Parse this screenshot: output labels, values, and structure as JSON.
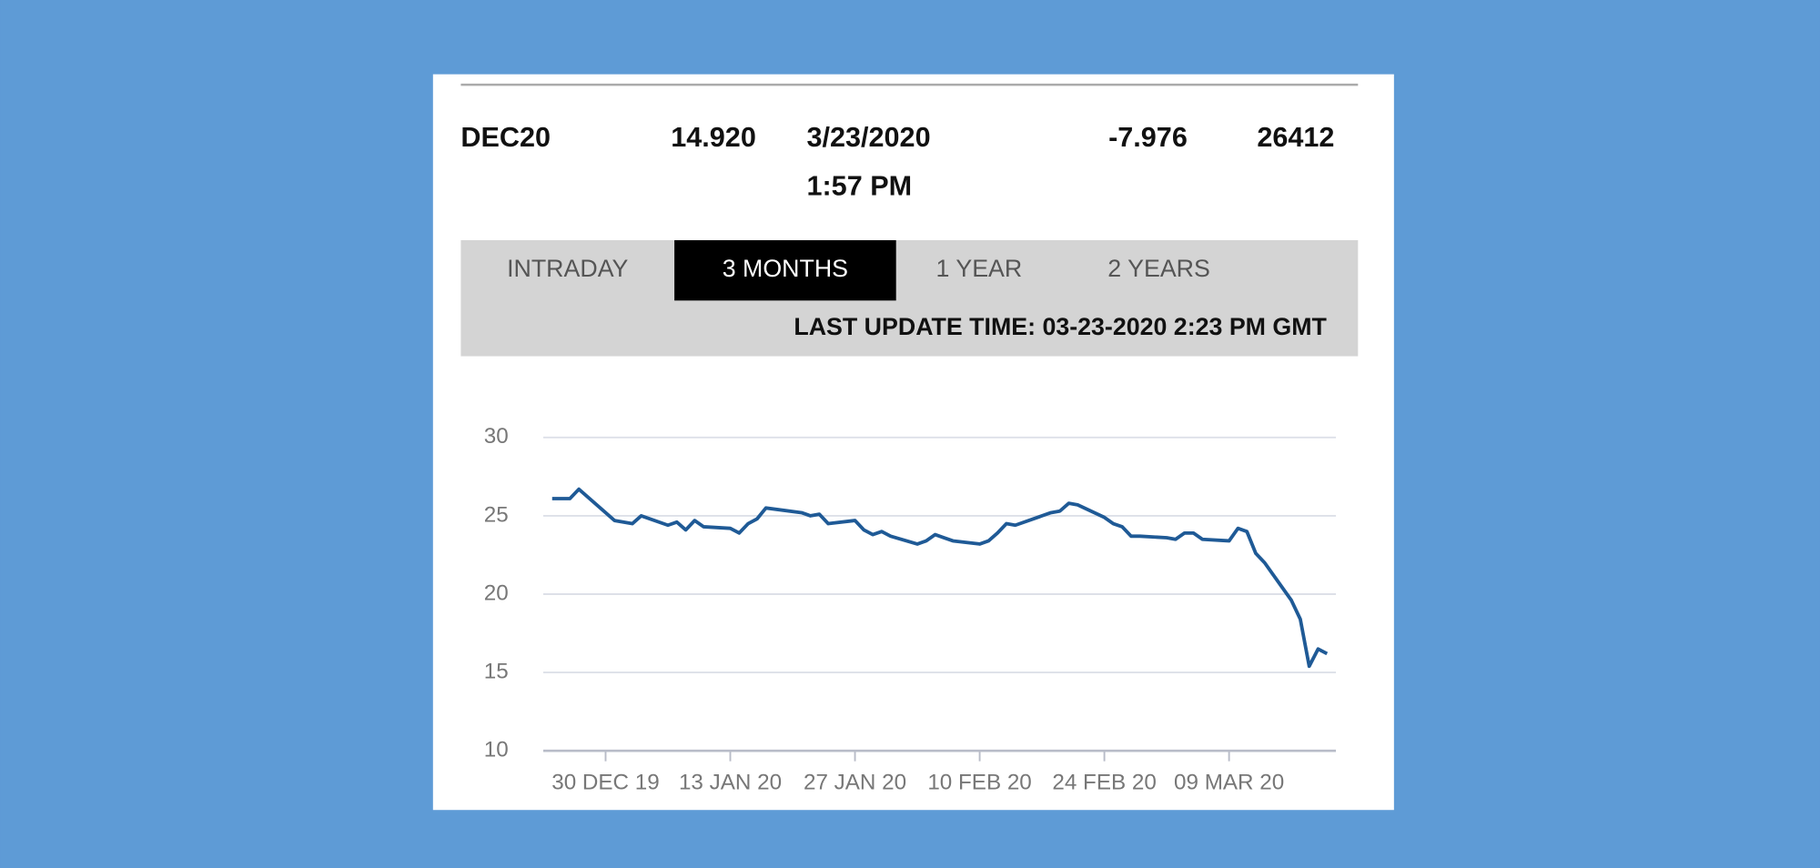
{
  "quote": {
    "contract": "DEC20",
    "last": "14.920",
    "date": "3/23/2020",
    "time": "1:57 PM",
    "change": "-7.976",
    "volume": "26412"
  },
  "tabs": [
    "INTRADAY",
    "3 MONTHS",
    "1 YEAR",
    "2 YEARS"
  ],
  "active_tab": 1,
  "last_update": "LAST UPDATE TIME: 03-23-2020 2:23 PM GMT",
  "chart_data": {
    "type": "line",
    "color": "#1f5a96",
    "grid": true,
    "x": [
      "2019-12-24",
      "2019-12-26",
      "2019-12-27",
      "2019-12-30",
      "2019-12-31",
      "2020-01-02",
      "2020-01-03",
      "2020-01-06",
      "2020-01-07",
      "2020-01-08",
      "2020-01-09",
      "2020-01-10",
      "2020-01-13",
      "2020-01-14",
      "2020-01-15",
      "2020-01-16",
      "2020-01-17",
      "2020-01-21",
      "2020-01-22",
      "2020-01-23",
      "2020-01-24",
      "2020-01-27",
      "2020-01-28",
      "2020-01-29",
      "2020-01-30",
      "2020-01-31",
      "2020-02-03",
      "2020-02-04",
      "2020-02-05",
      "2020-02-06",
      "2020-02-07",
      "2020-02-10",
      "2020-02-11",
      "2020-02-12",
      "2020-02-13",
      "2020-02-14",
      "2020-02-18",
      "2020-02-19",
      "2020-02-20",
      "2020-02-21",
      "2020-02-24",
      "2020-02-25",
      "2020-02-26",
      "2020-02-27",
      "2020-02-28",
      "2020-03-02",
      "2020-03-03",
      "2020-03-04",
      "2020-03-05",
      "2020-03-06",
      "2020-03-09",
      "2020-03-10",
      "2020-03-11",
      "2020-03-12",
      "2020-03-13",
      "2020-03-16",
      "2020-03-17",
      "2020-03-18",
      "2020-03-19",
      "2020-03-20"
    ],
    "values": [
      26.1,
      26.1,
      26.7,
      25.2,
      24.7,
      24.5,
      25.0,
      24.4,
      24.6,
      24.1,
      24.7,
      24.3,
      24.2,
      23.9,
      24.5,
      24.8,
      25.5,
      25.2,
      25.0,
      25.1,
      24.5,
      24.7,
      24.1,
      23.8,
      24.0,
      23.7,
      23.2,
      23.4,
      23.8,
      23.6,
      23.4,
      23.2,
      23.4,
      23.9,
      24.5,
      24.4,
      25.2,
      25.3,
      25.8,
      25.7,
      24.9,
      24.5,
      24.3,
      23.7,
      23.7,
      23.6,
      23.5,
      23.9,
      23.9,
      23.5,
      23.4,
      24.2,
      24.0,
      22.6,
      22.0,
      19.6,
      18.4,
      15.4,
      16.5,
      16.2
    ],
    "xlim": [
      "2019-12-23",
      "2020-03-21"
    ],
    "xticks": [
      {
        "value": "2019-12-30",
        "label": "30 DEC 19"
      },
      {
        "value": "2020-01-13",
        "label": "13 JAN 20"
      },
      {
        "value": "2020-01-27",
        "label": "27 JAN 20"
      },
      {
        "value": "2020-02-10",
        "label": "10 FEB 20"
      },
      {
        "value": "2020-02-24",
        "label": "24 FEB 20"
      },
      {
        "value": "2020-03-09",
        "label": "09 MAR 20"
      }
    ],
    "ylim": [
      10,
      30
    ],
    "yticks": [
      10,
      15,
      20,
      25,
      30
    ]
  }
}
